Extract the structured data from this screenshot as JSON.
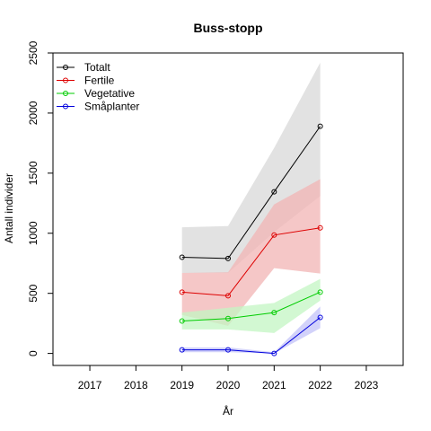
{
  "chart_data": {
    "type": "line",
    "title": "Buss-stopp",
    "xlabel": "År",
    "ylabel": "Antall individer",
    "xlim": [
      2016.2,
      2023.8
    ],
    "ylim": [
      -100,
      2500
    ],
    "x_ticks": [
      2017,
      2018,
      2019,
      2020,
      2021,
      2022,
      2023
    ],
    "y_ticks": [
      0,
      500,
      1000,
      1500,
      2000,
      2500
    ],
    "x": [
      2019,
      2020,
      2021,
      2022
    ],
    "legend_position": "top-left",
    "grid": false,
    "series": [
      {
        "name": "Totalt",
        "color": "#000000",
        "band_color": "#e2e2e2",
        "values": [
          800,
          790,
          1345,
          1890
        ],
        "lower": [
          670,
          670,
          1010,
          1310
        ],
        "upper": [
          1050,
          1060,
          1710,
          2420
        ]
      },
      {
        "name": "Fertile",
        "color": "#dd0000",
        "band_color": "#f2b4b4",
        "values": [
          510,
          480,
          985,
          1045
        ],
        "lower": [
          320,
          230,
          710,
          665
        ],
        "upper": [
          670,
          675,
          1240,
          1450
        ]
      },
      {
        "name": "Vegetative",
        "color": "#00cc00",
        "band_color": "#c3f5c3",
        "values": [
          270,
          290,
          340,
          510
        ],
        "lower": [
          200,
          200,
          170,
          440
        ],
        "upper": [
          340,
          380,
          420,
          620
        ]
      },
      {
        "name": "Småplanter",
        "color": "#0000dd",
        "band_color": "#c3c3f8",
        "values": [
          30,
          30,
          0,
          300
        ],
        "lower": [
          10,
          10,
          0,
          210
        ],
        "upper": [
          50,
          50,
          10,
          390
        ]
      }
    ]
  }
}
